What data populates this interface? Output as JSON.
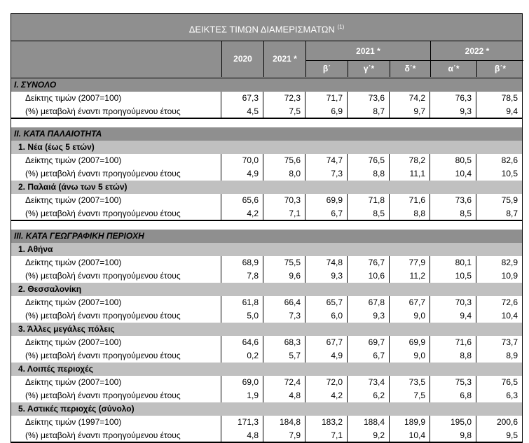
{
  "title": "ΔΕΙΚΤΕΣ ΤΙΜΩΝ ΔΙΑΜΕΡΙΣΜΑΤΩΝ",
  "title_note": "(1)",
  "header": {
    "col_2020": "2020",
    "col_2021": "2021 *",
    "group_2021": "2021 *",
    "group_2022": "2022 *",
    "q_b": "β΄",
    "q_g": "γ΄*",
    "q_d": "δ΄*",
    "q_a22": "α΄*",
    "q_b22": "β΄*"
  },
  "sections": [
    {
      "type": "sec",
      "label": "I. ΣΥΝΟΛΟ"
    },
    {
      "type": "data",
      "label": "Δείκτης τιμών (2007=100)",
      "values": [
        "67,3",
        "72,3",
        "71,7",
        "73,6",
        "74,2",
        "76,3",
        "78,5"
      ]
    },
    {
      "type": "data",
      "label": "(%) μεταβολή έναντι προηγούμενου έτους",
      "values": [
        "4,5",
        "7,5",
        "6,9",
        "8,7",
        "9,7",
        "9,3",
        "9,4"
      ],
      "last": true
    },
    {
      "type": "spacer"
    },
    {
      "type": "sec",
      "label": "II. ΚΑΤΑ ΠΑΛΑΙΟΤΗΤΑ"
    },
    {
      "type": "sub",
      "label": "1.  Νέα (έως 5 ετών)"
    },
    {
      "type": "data",
      "label": "Δείκτης τιμών (2007=100)",
      "values": [
        "70,0",
        "75,6",
        "74,7",
        "76,5",
        "78,2",
        "80,5",
        "82,6"
      ]
    },
    {
      "type": "data",
      "label": "(%) μεταβολή έναντι προηγούμενου έτους",
      "values": [
        "4,9",
        "8,0",
        "7,3",
        "8,8",
        "11,1",
        "10,4",
        "10,5"
      ]
    },
    {
      "type": "sub",
      "label": "2. Παλαιά (άνω των 5 ετών)"
    },
    {
      "type": "data",
      "label": "Δείκτης τιμών (2007=100)",
      "values": [
        "65,6",
        "70,3",
        "69,9",
        "71,8",
        "71,6",
        "73,6",
        "75,9"
      ]
    },
    {
      "type": "data",
      "label": "(%) μεταβολή έναντι προηγούμενου έτους",
      "values": [
        "4,2",
        "7,1",
        "6,7",
        "8,5",
        "8,8",
        "8,5",
        "8,7"
      ],
      "last": true
    },
    {
      "type": "spacer"
    },
    {
      "type": "sec",
      "label": "III. ΚΑΤΑ ΓΕΩΓΡΑΦΙΚΗ ΠΕΡΙΟΧΗ"
    },
    {
      "type": "sub",
      "label": "1.  Αθήνα"
    },
    {
      "type": "data",
      "label": "Δείκτης τιμών (2007=100)",
      "values": [
        "68,9",
        "75,5",
        "74,8",
        "76,7",
        "77,9",
        "80,1",
        "82,9"
      ]
    },
    {
      "type": "data",
      "label": "(%) μεταβολή έναντι προηγούμενου έτους",
      "values": [
        "7,8",
        "9,6",
        "9,3",
        "10,6",
        "11,2",
        "10,5",
        "10,9"
      ]
    },
    {
      "type": "sub",
      "label": "2.  Θεσσαλονίκη"
    },
    {
      "type": "data",
      "label": "Δείκτης τιμών (2007=100)",
      "values": [
        "61,8",
        "66,4",
        "65,7",
        "67,8",
        "67,7",
        "70,3",
        "72,6"
      ]
    },
    {
      "type": "data",
      "label": "(%) μεταβολή έναντι προηγούμενου έτους",
      "values": [
        "5,0",
        "7,3",
        "6,0",
        "9,3",
        "9,0",
        "9,4",
        "10,4"
      ]
    },
    {
      "type": "sub",
      "label": "3.  Άλλες μεγάλες πόλεις"
    },
    {
      "type": "data",
      "label": "Δείκτης τιμών (2007=100)",
      "values": [
        "64,6",
        "68,3",
        "67,7",
        "69,7",
        "69,9",
        "71,6",
        "73,7"
      ]
    },
    {
      "type": "data",
      "label": "(%) μεταβολή έναντι προηγούμενου έτους",
      "values": [
        "0,2",
        "5,7",
        "4,9",
        "6,7",
        "9,0",
        "8,8",
        "8,9"
      ]
    },
    {
      "type": "sub",
      "label": "4.  Λοιπές περιοχές"
    },
    {
      "type": "data",
      "label": "Δείκτης τιμών (2007=100)",
      "values": [
        "69,0",
        "72,4",
        "72,0",
        "73,4",
        "73,5",
        "75,3",
        "76,5"
      ]
    },
    {
      "type": "data",
      "label": "(%) μεταβολή έναντι προηγούμενου έτους",
      "values": [
        "1,9",
        "4,8",
        "4,2",
        "6,2",
        "7,5",
        "6,8",
        "6,3"
      ]
    },
    {
      "type": "sub",
      "label": "5.  Αστικές περιοχές (σύνολο)"
    },
    {
      "type": "data",
      "label": "Δείκτης τιμών (1997=100)",
      "values": [
        "171,3",
        "184,8",
        "183,2",
        "188,4",
        "189,9",
        "195,0",
        "200,6"
      ]
    },
    {
      "type": "data",
      "label": "(%) μεταβολή έναντι προηγούμενου έτους",
      "values": [
        "4,8",
        "7,9",
        "7,1",
        "9,2",
        "10,4",
        "9,8",
        "9,5"
      ],
      "last": true
    }
  ]
}
